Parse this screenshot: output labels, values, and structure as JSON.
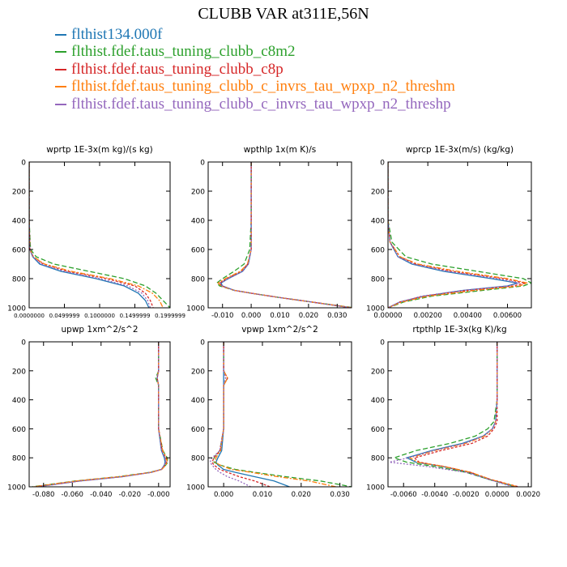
{
  "page_title": "CLUBB VAR at311E,56N",
  "legend": [
    {
      "label": "flthist134.000f",
      "color": "#1f77b4"
    },
    {
      "label": "flthist.fdef.taus_tuning_clubb_c8m2",
      "color": "#2ca02c"
    },
    {
      "label": "flthist.fdef.taus_tuning_clubb_c8p",
      "color": "#d62728"
    },
    {
      "label": "flthist.fdef.taus_tuning_clubb_c_invrs_tau_wpxp_n2_threshm",
      "color": "#ff7f0e"
    },
    {
      "label": "flthist.fdef.taus_tuning_clubb_c_invrs_tau_wpxp_n2_threshp",
      "color": "#9467bd"
    }
  ],
  "chart_data": [
    {
      "type": "line",
      "title": "wprtp  1E-3x(m kg)/(s kg)",
      "ylim": [
        1000,
        0
      ],
      "xlim": [
        0,
        0.2
      ],
      "x_ticks": [
        0,
        0.05,
        0.1,
        0.15,
        0.2
      ],
      "x_tick_labels": [
        "0.0000000",
        "0.0499999",
        "0.1000000",
        "0.1499999",
        "0.1999999"
      ],
      "y_ticks": [
        0,
        200,
        400,
        600,
        800,
        1000
      ],
      "y": [
        0,
        200,
        400,
        600,
        650,
        700,
        750,
        800,
        850,
        900,
        950,
        1000
      ],
      "series": [
        {
          "values": [
            0.0,
            0.0,
            0.0,
            0.001,
            0.005,
            0.015,
            0.045,
            0.095,
            0.135,
            0.155,
            0.165,
            0.17
          ]
        },
        {
          "values": [
            0.0,
            0.0,
            0.0,
            0.002,
            0.01,
            0.035,
            0.085,
            0.135,
            0.165,
            0.18,
            0.19,
            0.2
          ]
        },
        {
          "values": [
            0.0,
            0.0,
            0.0,
            0.001,
            0.006,
            0.02,
            0.055,
            0.11,
            0.15,
            0.165,
            0.172,
            0.176
          ]
        },
        {
          "values": [
            0.0,
            0.0,
            0.0,
            0.001,
            0.006,
            0.022,
            0.06,
            0.115,
            0.155,
            0.175,
            0.185,
            0.19
          ]
        },
        {
          "values": [
            0.0,
            0.0,
            0.0,
            0.001,
            0.005,
            0.017,
            0.05,
            0.1,
            0.14,
            0.16,
            0.168,
            0.172
          ]
        }
      ]
    },
    {
      "type": "line",
      "title": "wpthlp  1x(m K)/s",
      "ylim": [
        1000,
        0
      ],
      "xlim": [
        -0.015,
        0.035
      ],
      "x_ticks": [
        -0.01,
        0,
        0.01,
        0.02,
        0.03
      ],
      "x_tick_labels": [
        "-0.010",
        "0.000",
        "0.010",
        "0.020",
        "0.030"
      ],
      "y_ticks": [
        0,
        200,
        400,
        600,
        800,
        1000
      ],
      "y": [
        0,
        200,
        400,
        600,
        700,
        750,
        800,
        830,
        850,
        880,
        900,
        930,
        960,
        1000
      ],
      "series": [
        {
          "values": [
            0.0,
            0.0,
            0.0,
            0.0,
            -0.001,
            -0.003,
            -0.008,
            -0.0105,
            -0.01,
            -0.006,
            0.0,
            0.01,
            0.021,
            0.035
          ]
        },
        {
          "values": [
            0.0,
            0.0,
            0.0,
            -0.0005,
            -0.0025,
            -0.006,
            -0.01,
            -0.012,
            -0.011,
            -0.006,
            0.0,
            0.01,
            0.021,
            0.036
          ]
        },
        {
          "values": [
            0.0,
            0.0,
            0.0,
            0.0,
            -0.0012,
            -0.0035,
            -0.0085,
            -0.011,
            -0.0103,
            -0.006,
            0.0,
            0.01,
            0.021,
            0.035
          ]
        },
        {
          "values": [
            0.0,
            0.0,
            0.0,
            0.0,
            -0.0013,
            -0.0038,
            -0.009,
            -0.0115,
            -0.0105,
            -0.006,
            0.0,
            0.01,
            0.021,
            0.0355
          ]
        },
        {
          "values": [
            0.0,
            0.0,
            0.0,
            0.0,
            -0.001,
            -0.003,
            -0.008,
            -0.0108,
            -0.0101,
            -0.006,
            0.0,
            0.01,
            0.021,
            0.035
          ]
        }
      ]
    },
    {
      "type": "line",
      "title": "wprcp  1E-3x(m/s) (kg/kg)",
      "ylim": [
        1000,
        0
      ],
      "xlim": [
        0,
        0.0072
      ],
      "x_ticks": [
        0,
        0.002,
        0.004,
        0.006
      ],
      "x_tick_labels": [
        "0.00000",
        "0.00200",
        "0.00400",
        "0.00600"
      ],
      "y_ticks": [
        0,
        200,
        400,
        600,
        800,
        1000
      ],
      "y": [
        0,
        400,
        550,
        650,
        700,
        750,
        800,
        830,
        850,
        880,
        920,
        960,
        1000
      ],
      "series": [
        {
          "values": [
            0.0,
            0.0,
            0.0001,
            0.0005,
            0.0012,
            0.0028,
            0.0052,
            0.0065,
            0.006,
            0.0038,
            0.0018,
            0.0006,
            0.0
          ]
        },
        {
          "values": [
            0.0,
            0.0,
            0.0002,
            0.0009,
            0.0022,
            0.0045,
            0.0068,
            0.0072,
            0.0068,
            0.0048,
            0.0022,
            0.0008,
            0.0
          ]
        },
        {
          "values": [
            0.0,
            0.0,
            0.0001,
            0.0006,
            0.0014,
            0.0032,
            0.0058,
            0.0069,
            0.0063,
            0.004,
            0.0018,
            0.0006,
            0.0
          ]
        },
        {
          "values": [
            0.0,
            0.0,
            0.0001,
            0.0006,
            0.0015,
            0.0035,
            0.006,
            0.007,
            0.0066,
            0.0044,
            0.002,
            0.0007,
            0.0
          ]
        },
        {
          "values": [
            0.0,
            0.0,
            0.0001,
            0.0005,
            0.0013,
            0.003,
            0.0055,
            0.0066,
            0.006,
            0.0038,
            0.0017,
            0.0006,
            0.0
          ]
        }
      ]
    },
    {
      "type": "line",
      "title": "upwp  1xm^2/s^2",
      "ylim": [
        1000,
        0
      ],
      "xlim": [
        -0.09,
        0.008
      ],
      "x_ticks": [
        -0.08,
        -0.06,
        -0.04,
        -0.02,
        0
      ],
      "x_tick_labels": [
        "-0.080",
        "-0.060",
        "-0.040",
        "-0.020",
        "-0.000"
      ],
      "y_ticks": [
        0,
        200,
        400,
        600,
        800,
        1000
      ],
      "y": [
        0,
        200,
        250,
        300,
        600,
        750,
        800,
        830,
        850,
        880,
        900,
        930,
        960,
        1000
      ],
      "series": [
        {
          "values": [
            0.0,
            0.0,
            -0.001,
            0.0,
            0.0,
            0.002,
            0.004,
            0.0045,
            0.004,
            0.002,
            -0.005,
            -0.025,
            -0.055,
            -0.085
          ]
        },
        {
          "values": [
            0.0,
            0.0,
            -0.002,
            0.0,
            0.0,
            0.003,
            0.006,
            0.0065,
            0.005,
            0.002,
            -0.006,
            -0.028,
            -0.058,
            -0.088
          ]
        },
        {
          "values": [
            0.0,
            0.0,
            -0.001,
            0.0,
            0.0,
            0.0025,
            0.005,
            0.0055,
            0.0045,
            0.002,
            -0.005,
            -0.026,
            -0.056,
            -0.086
          ]
        },
        {
          "values": [
            0.0,
            0.0,
            -0.001,
            0.0,
            0.0,
            0.0028,
            0.0055,
            0.006,
            0.005,
            0.0022,
            -0.005,
            -0.027,
            -0.057,
            -0.087
          ]
        },
        {
          "values": [
            0.0,
            0.0,
            -0.001,
            0.0,
            0.0,
            0.002,
            0.0045,
            0.005,
            0.004,
            0.002,
            -0.005,
            -0.025,
            -0.054,
            -0.084
          ]
        }
      ]
    },
    {
      "type": "line",
      "title": "vpwp  1xm^2/s^2",
      "ylim": [
        1000,
        0
      ],
      "xlim": [
        -0.004,
        0.033
      ],
      "x_ticks": [
        0,
        0.01,
        0.02,
        0.03
      ],
      "x_tick_labels": [
        "0.000",
        "0.010",
        "0.020",
        "0.030"
      ],
      "y_ticks": [
        0,
        200,
        400,
        600,
        800,
        1000
      ],
      "y": [
        0,
        200,
        250,
        300,
        600,
        750,
        800,
        830,
        850,
        880,
        900,
        930,
        960,
        1000
      ],
      "series": [
        {
          "values": [
            0.0,
            0.0,
            0.0,
            0.0,
            0.0,
            -0.0005,
            -0.0015,
            -0.002,
            -0.0015,
            0.0,
            0.003,
            0.008,
            0.013,
            0.017
          ]
        },
        {
          "values": [
            0.0,
            0.0,
            0.001,
            0.0,
            0.0,
            -0.001,
            -0.0025,
            -0.0025,
            -0.001,
            0.003,
            0.008,
            0.016,
            0.025,
            0.033
          ]
        },
        {
          "values": [
            0.0,
            0.0,
            0.001,
            0.0,
            0.0,
            -0.001,
            -0.0025,
            -0.003,
            -0.0025,
            -0.001,
            0.001,
            0.004,
            0.008,
            0.012
          ]
        },
        {
          "values": [
            0.0,
            0.0,
            0.001,
            0.0,
            0.0,
            -0.0008,
            -0.002,
            -0.0022,
            -0.001,
            0.002,
            0.007,
            0.014,
            0.022,
            0.029
          ]
        },
        {
          "values": [
            0.0,
            0.0,
            0.0005,
            0.0,
            0.0,
            -0.001,
            -0.003,
            -0.0035,
            -0.003,
            -0.002,
            -0.001,
            0.001,
            0.004,
            0.007
          ]
        }
      ]
    },
    {
      "type": "line",
      "title": "rtpthlp  1E-3x(kg K)/kg",
      "ylim": [
        1000,
        0
      ],
      "xlim": [
        -0.007,
        0.0022
      ],
      "x_ticks": [
        -0.006,
        -0.004,
        -0.002,
        0,
        0.002
      ],
      "x_tick_labels": [
        "-0.0060",
        "-0.0040",
        "-0.0020",
        "0.0000",
        "0.0020"
      ],
      "y_ticks": [
        0,
        200,
        400,
        600,
        800,
        1000
      ],
      "y": [
        0,
        400,
        550,
        600,
        650,
        700,
        750,
        800,
        830,
        860,
        900,
        950,
        1000
      ],
      "series": [
        {
          "values": [
            0.0,
            0.0,
            -0.0001,
            -0.0003,
            -0.0009,
            -0.0022,
            -0.0042,
            -0.0058,
            -0.0052,
            -0.0035,
            -0.0018,
            -0.0005,
            0.0012
          ]
        },
        {
          "values": [
            0.0,
            0.0,
            -0.0002,
            -0.0006,
            -0.0014,
            -0.003,
            -0.0052,
            -0.0066,
            -0.0058,
            -0.004,
            -0.002,
            -0.0005,
            0.0013
          ]
        },
        {
          "values": [
            0.0,
            0.0,
            0.0,
            -0.0002,
            -0.0006,
            -0.0016,
            -0.0036,
            -0.0053,
            -0.005,
            -0.0034,
            -0.0017,
            -0.0004,
            0.0014
          ]
        },
        {
          "values": [
            0.0,
            0.0,
            -0.0001,
            -0.0003,
            -0.0008,
            -0.002,
            -0.004,
            -0.0056,
            -0.0051,
            -0.0034,
            -0.0017,
            -0.0004,
            0.0013
          ]
        },
        {
          "values": [
            0.0,
            0.0,
            -0.0001,
            -0.0003,
            -0.0009,
            -0.0021,
            -0.0041,
            -0.0057,
            -0.0069,
            -0.0045,
            -0.002,
            -0.0005,
            0.001
          ]
        }
      ]
    }
  ]
}
